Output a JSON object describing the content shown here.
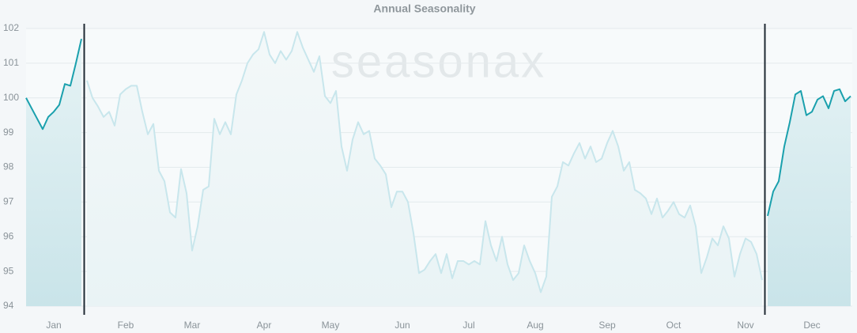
{
  "chart_data": {
    "type": "line",
    "title": "Annual Seasonality",
    "watermark": "seasonax",
    "categories": [
      null,
      null,
      null,
      null,
      null,
      "Jan",
      null,
      null,
      null,
      null,
      null,
      null,
      null,
      null,
      null,
      null,
      null,
      null,
      "Feb",
      null,
      null,
      null,
      null,
      null,
      null,
      null,
      null,
      null,
      null,
      null,
      "Mar",
      null,
      null,
      null,
      null,
      null,
      null,
      null,
      null,
      null,
      null,
      null,
      null,
      "Apr",
      null,
      null,
      null,
      null,
      null,
      null,
      null,
      null,
      null,
      null,
      null,
      "May",
      null,
      null,
      null,
      null,
      null,
      null,
      null,
      null,
      null,
      null,
      null,
      null,
      "Jun",
      null,
      null,
      null,
      null,
      null,
      null,
      null,
      null,
      null,
      null,
      null,
      "Jul",
      null,
      null,
      null,
      null,
      null,
      null,
      null,
      null,
      null,
      null,
      null,
      "Aug",
      null,
      null,
      null,
      null,
      null,
      null,
      null,
      null,
      null,
      null,
      null,
      null,
      "Sep",
      null,
      null,
      null,
      null,
      null,
      null,
      null,
      null,
      null,
      null,
      null,
      "Oct",
      null,
      null,
      null,
      null,
      null,
      null,
      null,
      null,
      null,
      null,
      null,
      null,
      "Nov",
      null,
      null,
      null,
      null,
      null,
      null,
      null,
      null,
      null,
      null,
      null,
      "Dec",
      null,
      null,
      null,
      null,
      null,
      null,
      null
    ],
    "series": [
      {
        "color": "#1aa0ad",
        "values": [
          100.0,
          99.7,
          99.4,
          99.1,
          99.45,
          99.6,
          99.8,
          100.4,
          100.35,
          101.0,
          101.7,
          null,
          null,
          null,
          null,
          null,
          null,
          null,
          null,
          null,
          null,
          null,
          null,
          null,
          null,
          null,
          null,
          null,
          null,
          null,
          null,
          null,
          null,
          null,
          null,
          null,
          null,
          null,
          null,
          null,
          null,
          null,
          null,
          null,
          null,
          null,
          null,
          null,
          null,
          null,
          null,
          null,
          null,
          null,
          null,
          null,
          null,
          null,
          null,
          null,
          null,
          null,
          null,
          null,
          null,
          null,
          null,
          null,
          null,
          null,
          null,
          null,
          null,
          null,
          null,
          null,
          null,
          null,
          null,
          null,
          null,
          null,
          null,
          null,
          null,
          null,
          null,
          null,
          null,
          null,
          null,
          null,
          null,
          null,
          null,
          null,
          null,
          null,
          null,
          null,
          null,
          null,
          null,
          null,
          null,
          null,
          null,
          null,
          null,
          null,
          null,
          null,
          null,
          null,
          null,
          null,
          null,
          null,
          null,
          null,
          null,
          null,
          null,
          null,
          null,
          null,
          null,
          null,
          null,
          null,
          null,
          null,
          null,
          null,
          96.6,
          97.3,
          97.6,
          98.6,
          99.3,
          100.1,
          100.2,
          99.5,
          99.6,
          99.95,
          100.05,
          99.7,
          100.2,
          100.25,
          99.9,
          100.05
        ]
      },
      {
        "color": "#c8e6ec",
        "values": [
          null,
          null,
          null,
          null,
          null,
          null,
          null,
          null,
          null,
          null,
          null,
          100.5,
          100,
          99.75,
          99.45,
          99.6,
          99.2,
          100.1,
          100.25,
          100.35,
          100.35,
          99.6,
          98.95,
          99.25,
          97.9,
          97.6,
          96.7,
          96.55,
          97.95,
          97.25,
          95.6,
          96.3,
          97.35,
          97.45,
          99.4,
          98.95,
          99.3,
          98.95,
          100.1,
          100.5,
          101,
          101.25,
          101.4,
          101.9,
          101.25,
          101,
          101.35,
          101.1,
          101.35,
          101.9,
          101.45,
          101.1,
          100.75,
          101.2,
          100.05,
          99.85,
          100.2,
          98.6,
          97.9,
          98.8,
          99.3,
          98.95,
          99.05,
          98.25,
          98.05,
          97.8,
          96.85,
          97.3,
          97.3,
          97,
          96.1,
          94.95,
          95.05,
          95.3,
          95.5,
          94.95,
          95.5,
          94.8,
          95.3,
          95.3,
          95.2,
          95.3,
          95.2,
          96.45,
          95.75,
          95.3,
          96,
          95.2,
          94.75,
          94.95,
          95.75,
          95.3,
          94.95,
          94.4,
          94.85,
          97.15,
          97.45,
          98.15,
          98.05,
          98.4,
          98.7,
          98.25,
          98.6,
          98.15,
          98.25,
          98.7,
          99.05,
          98.6,
          97.9,
          98.15,
          97.35,
          97.25,
          97.1,
          96.65,
          97.1,
          96.55,
          96.75,
          97,
          96.65,
          96.55,
          96.9,
          96.3,
          94.95,
          95.4,
          95.95,
          95.75,
          96.3,
          95.95,
          94.85,
          95.5,
          95.95,
          95.85,
          95.5,
          94.75,
          null,
          null,
          null,
          null,
          null,
          null,
          null,
          null,
          null,
          null,
          null,
          null,
          null,
          null,
          null,
          null
        ]
      }
    ],
    "ylim": [
      94,
      102
    ],
    "yticks": [
      94,
      95,
      96,
      97,
      98,
      99,
      100,
      101,
      102
    ],
    "grid": true
  }
}
